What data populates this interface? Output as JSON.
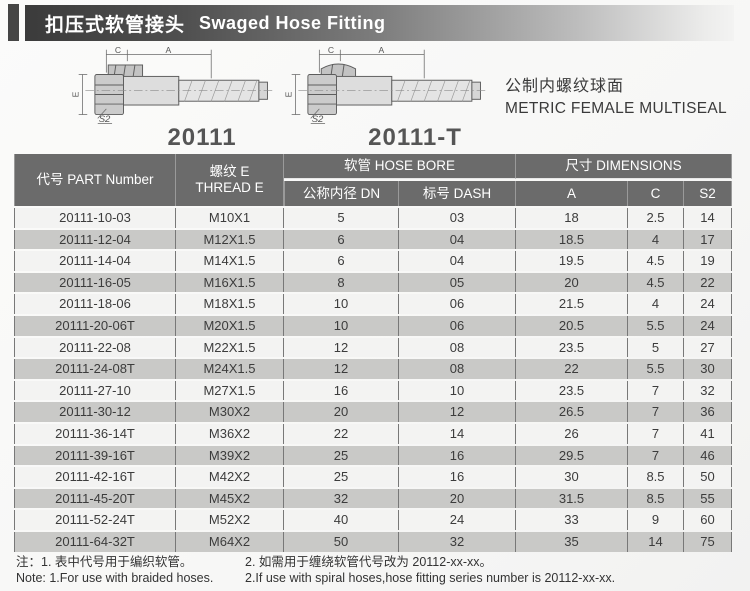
{
  "header": {
    "title_zh": "扣压式软管接头",
    "title_en": "Swaged Hose Fitting"
  },
  "subtitle": {
    "zh": "公制内螺纹球面",
    "en": "METRIC FEMALE MULTISEAL"
  },
  "drawings": [
    {
      "label": "20111",
      "dim_c": "C",
      "dim_a": "A",
      "dim_e": "E",
      "dim_s2": "S2"
    },
    {
      "label": "20111-T",
      "dim_c": "C",
      "dim_a": "A",
      "dim_e": "E",
      "dim_s2": "S2"
    }
  ],
  "table": {
    "col_part": "代号 PART Number",
    "col_thread_line1": "螺纹 E",
    "col_thread_line2": "THREAD E",
    "group_hose_bore": "软管 HOSE BORE",
    "col_dn": "公称内径 DN",
    "col_dash": "标号 DASH",
    "group_dimensions": "尺寸 DIMENSIONS",
    "col_a": "A",
    "col_c": "C",
    "col_s2": "S2",
    "rows": [
      [
        "20111-10-03",
        "M10X1",
        "5",
        "03",
        "18",
        "2.5",
        "14"
      ],
      [
        "20111-12-04",
        "M12X1.5",
        "6",
        "04",
        "18.5",
        "4",
        "17"
      ],
      [
        "20111-14-04",
        "M14X1.5",
        "6",
        "04",
        "19.5",
        "4.5",
        "19"
      ],
      [
        "20111-16-05",
        "M16X1.5",
        "8",
        "05",
        "20",
        "4.5",
        "22"
      ],
      [
        "20111-18-06",
        "M18X1.5",
        "10",
        "06",
        "21.5",
        "4",
        "24"
      ],
      [
        "20111-20-06T",
        "M20X1.5",
        "10",
        "06",
        "20.5",
        "5.5",
        "24"
      ],
      [
        "20111-22-08",
        "M22X1.5",
        "12",
        "08",
        "23.5",
        "5",
        "27"
      ],
      [
        "20111-24-08T",
        "M24X1.5",
        "12",
        "08",
        "22",
        "5.5",
        "30"
      ],
      [
        "20111-27-10",
        "M27X1.5",
        "16",
        "10",
        "23.5",
        "7",
        "32"
      ],
      [
        "20111-30-12",
        "M30X2",
        "20",
        "12",
        "26.5",
        "7",
        "36"
      ],
      [
        "20111-36-14T",
        "M36X2",
        "22",
        "14",
        "26",
        "7",
        "41"
      ],
      [
        "20111-39-16T",
        "M39X2",
        "25",
        "16",
        "29.5",
        "7",
        "46"
      ],
      [
        "20111-42-16T",
        "M42X2",
        "25",
        "16",
        "30",
        "8.5",
        "50"
      ],
      [
        "20111-45-20T",
        "M45X2",
        "32",
        "20",
        "31.5",
        "8.5",
        "55"
      ],
      [
        "20111-52-24T",
        "M52X2",
        "40",
        "24",
        "33",
        "9",
        "60"
      ],
      [
        "20111-64-32T",
        "M64X2",
        "50",
        "32",
        "35",
        "14",
        "75"
      ]
    ]
  },
  "notes": {
    "zh_1": "注：1. 表中代号用于编织软管。",
    "en_1": "Note: 1.For use with braided hoses.",
    "zh_2": "2. 如需用于缠绕软管代号改为 20112-xx-xx。",
    "en_2": "2.If use with spiral hoses,hose fitting series number is 20112-xx-xx."
  },
  "colors": {
    "header_dark": "#454545",
    "table_header_bg": "#6b6b6b",
    "row_light": "#f3f3f2",
    "row_dark": "#c9c9c7"
  }
}
